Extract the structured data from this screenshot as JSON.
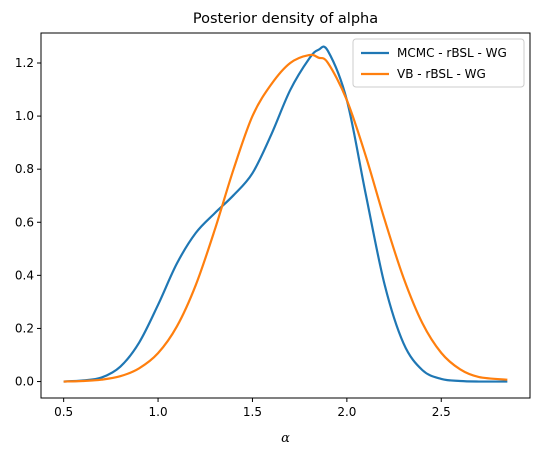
{
  "chart_data": {
    "type": "line",
    "title": "Posterior density of alpha",
    "xlabel": "α",
    "ylabel": "",
    "xlim": [
      0.38,
      2.97
    ],
    "ylim": [
      -0.062,
      1.313
    ],
    "xticks": [
      0.5,
      1.0,
      1.5,
      2.0,
      2.5
    ],
    "xtick_labels": [
      "0.5",
      "1.0",
      "1.5",
      "2.0",
      "2.5"
    ],
    "yticks": [
      0.0,
      0.2,
      0.4,
      0.6,
      0.8,
      1.0,
      1.2
    ],
    "ytick_labels": [
      "0.0",
      "0.2",
      "0.4",
      "0.6",
      "0.8",
      "1.0",
      "1.2"
    ],
    "grid": false,
    "legend_position": "top-right",
    "series": [
      {
        "name": "MCMC - rBSL - WG",
        "color": "#1f77b4",
        "x": [
          0.5,
          0.6,
          0.7,
          0.8,
          0.9,
          1.0,
          1.1,
          1.2,
          1.3,
          1.4,
          1.5,
          1.6,
          1.7,
          1.8,
          1.85,
          1.9,
          2.0,
          2.1,
          2.2,
          2.3,
          2.4,
          2.5,
          2.6,
          2.7,
          2.85
        ],
        "y": [
          0.0,
          0.004,
          0.015,
          0.056,
          0.147,
          0.289,
          0.445,
          0.56,
          0.634,
          0.702,
          0.785,
          0.931,
          1.098,
          1.216,
          1.25,
          1.245,
          1.06,
          0.706,
          0.365,
          0.144,
          0.043,
          0.01,
          0.002,
          0.0,
          0.0
        ]
      },
      {
        "name": "VB - rBSL - WG",
        "color": "#ff7f0e",
        "x": [
          0.5,
          0.6,
          0.7,
          0.8,
          0.9,
          1.0,
          1.1,
          1.2,
          1.3,
          1.4,
          1.5,
          1.6,
          1.7,
          1.8,
          1.85,
          1.9,
          2.0,
          2.1,
          2.2,
          2.3,
          2.4,
          2.5,
          2.6,
          2.7,
          2.85
        ],
        "y": [
          0.0,
          0.002,
          0.007,
          0.02,
          0.05,
          0.107,
          0.208,
          0.364,
          0.571,
          0.8,
          1.0,
          1.12,
          1.2,
          1.23,
          1.22,
          1.2,
          1.06,
          0.85,
          0.61,
          0.391,
          0.22,
          0.108,
          0.046,
          0.017,
          0.007
        ]
      }
    ]
  }
}
